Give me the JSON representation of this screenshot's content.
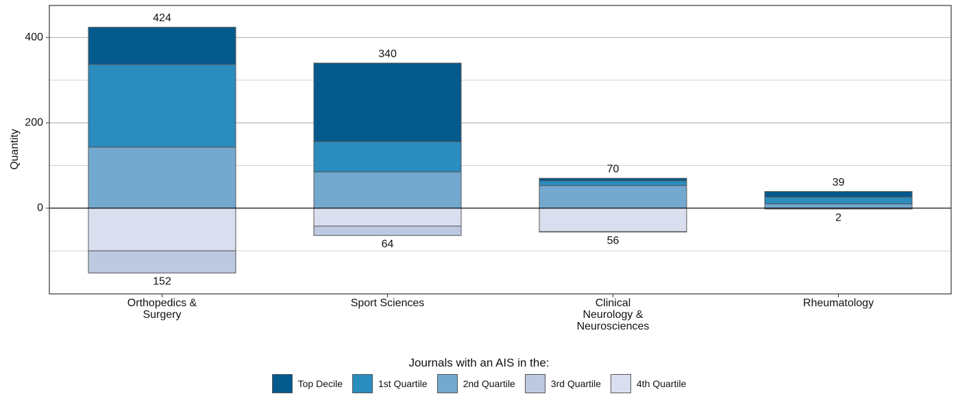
{
  "chart_data": {
    "type": "diverging_stacked_bar",
    "y_label": "Quantity",
    "legend_title": "Journals with an AIS in the:",
    "categories": [
      "Orthopedics & Surgery",
      "Sport Sciences",
      "Clinical Neurology & Neurosciences",
      "Rheumatology"
    ],
    "series": [
      {
        "name": "Top Decile",
        "color": "#045a8d",
        "values": [
          87,
          184,
          6,
          13
        ]
      },
      {
        "name": "1st Quartile",
        "color": "#2b8cbe",
        "values": [
          194,
          71,
          11,
          16
        ]
      },
      {
        "name": "2nd Quartile",
        "color": "#74a9cf",
        "values": [
          143,
          85,
          53,
          10
        ]
      },
      {
        "name": "3rd Quartile",
        "color": "#bdc9e1",
        "values": [
          -52,
          -22,
          -1,
          0
        ]
      },
      {
        "name": "4th Quartile",
        "color": "#d9dfee",
        "values": [
          -100,
          -42,
          -55,
          -2
        ]
      }
    ],
    "positive_totals": [
      424,
      340,
      70,
      39
    ],
    "negative_totals": [
      152,
      64,
      56,
      2
    ],
    "ylim": [
      -201,
      475
    ],
    "yticks": [
      0,
      200,
      400
    ],
    "minor_yticks": [
      -100,
      100,
      300
    ],
    "grid": true,
    "legend_position": "bottom"
  }
}
